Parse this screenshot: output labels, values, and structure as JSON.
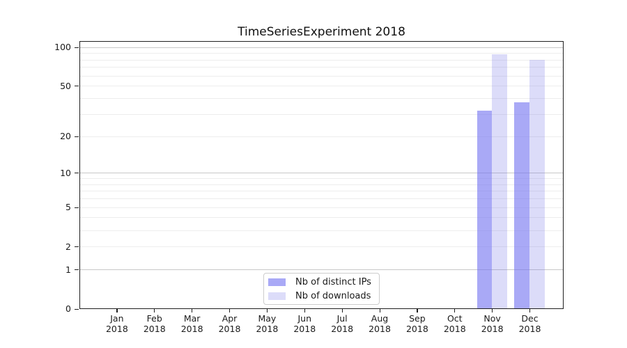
{
  "title": "TimeSeriesExperiment 2018",
  "chart_data": {
    "type": "bar",
    "title": "TimeSeriesExperiment 2018",
    "yscale": "log1p",
    "grid": "horizontal, log minor+major gridlines",
    "categories": [
      "Jan 2018",
      "Feb 2018",
      "Mar 2018",
      "Apr 2018",
      "May 2018",
      "Jun 2018",
      "Jul 2018",
      "Aug 2018",
      "Sep 2018",
      "Oct 2018",
      "Nov 2018",
      "Dec 2018"
    ],
    "series": [
      {
        "name": "Nb of distinct IPs",
        "color": "#7070F099",
        "values": [
          0,
          0,
          0,
          0,
          0,
          0,
          0,
          0,
          0,
          0,
          32,
          37
        ]
      },
      {
        "name": "Nb of downloads",
        "color": "#7474E840",
        "values": [
          0,
          0,
          0,
          0,
          0,
          0,
          0,
          0,
          0,
          0,
          88,
          80
        ]
      }
    ],
    "yticks": [
      0,
      1,
      2,
      5,
      10,
      20,
      50,
      100
    ],
    "ylim": [
      0,
      112
    ],
    "xlabel": "",
    "ylabel": "",
    "legend_position": "lower center",
    "colors": {
      "distinct_ips_rendered": "#a9a9f6",
      "downloads_rendered": "#dcdcf9",
      "major_grid": "#c8c8c8",
      "minor_grid": "#ededed",
      "spine": "#1f1f1f"
    }
  }
}
